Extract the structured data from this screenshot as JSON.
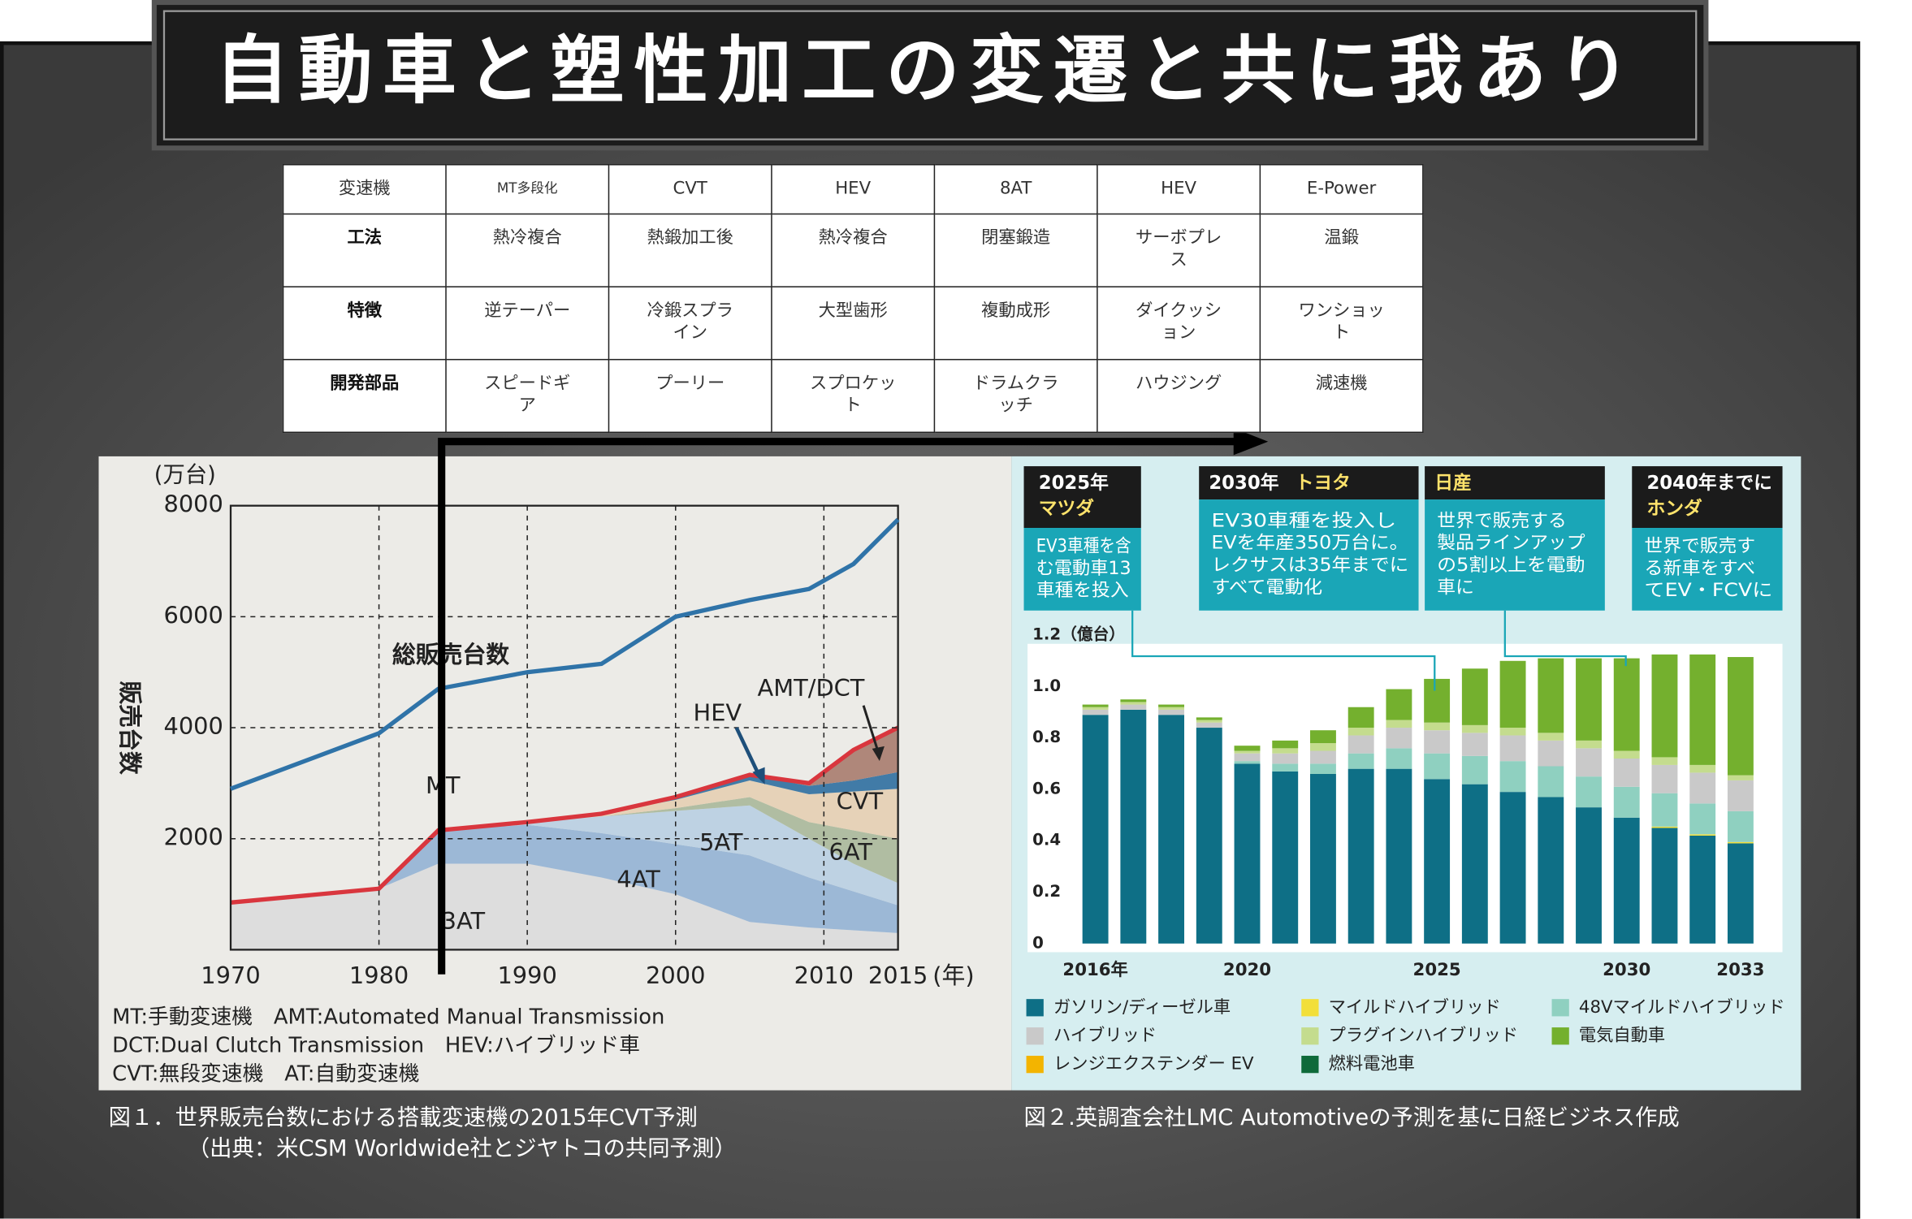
{
  "title": "自動車と塑性加工の変遷と共に我あり",
  "table": {
    "header": [
      "変速機",
      "MT多段化",
      "CVT",
      "HEV",
      "8AT",
      "HEV",
      "E-Power"
    ],
    "rows": [
      [
        "工法",
        "熱冷複合",
        "熱鍛加工後",
        "熱冷複合",
        "閉塞鍛造",
        "サーボプレス",
        "温鍛"
      ],
      [
        "特徴",
        "逆テーパー",
        "冷鍛スプライン",
        "大型歯形",
        "複動成形",
        "ダイクッション",
        "ワンショット"
      ],
      [
        "開発部品",
        "スピードギア",
        "プーリー",
        "スプロケット",
        "ドラムクラッチ",
        "ハウジング",
        "減速機"
      ]
    ]
  },
  "chart_data": [
    {
      "type": "stacked_area",
      "unit_label": "(万台)",
      "y_label": "販売台数",
      "x_unit": "(年)",
      "x": [
        1970,
        1980,
        1984,
        1990,
        1995,
        2000,
        2005,
        2009,
        2012,
        2015
      ],
      "xlim": [
        1970,
        2015
      ],
      "xticks": [
        1970,
        1980,
        1990,
        2000,
        2010,
        2015
      ],
      "ylim": [
        0,
        8000
      ],
      "yticks": [
        2000,
        4000,
        6000,
        8000
      ],
      "grid": true,
      "line_series": [
        {
          "name": "総販売台数",
          "color": "#2f73a8",
          "values": [
            2900,
            3900,
            4700,
            5000,
            5150,
            6000,
            6300,
            6500,
            6950,
            7750
          ]
        }
      ],
      "series": [
        {
          "name": "3AT",
          "color": "#dcdcdc",
          "values": [
            850,
            1100,
            1550,
            1550,
            1300,
            1000,
            500,
            400,
            350,
            300
          ]
        },
        {
          "name": "4AT",
          "color": "#93b2d4",
          "values": [
            0,
            0,
            600,
            700,
            800,
            900,
            1200,
            900,
            700,
            500
          ]
        },
        {
          "name": "5AT",
          "color": "#b9cfe2",
          "values": [
            0,
            0,
            0,
            50,
            300,
            600,
            900,
            700,
            500,
            400
          ]
        },
        {
          "name": "6AT",
          "color": "#aab89a",
          "values": [
            0,
            0,
            0,
            0,
            0,
            50,
            150,
            300,
            600,
            800
          ]
        },
        {
          "name": "CVT",
          "color": "#e6cfb2",
          "values": [
            0,
            0,
            0,
            0,
            50,
            150,
            300,
            500,
            700,
            900
          ]
        },
        {
          "name": "HEV",
          "color": "#2f6fa0",
          "values": [
            0,
            0,
            0,
            0,
            0,
            50,
            100,
            150,
            200,
            300
          ]
        },
        {
          "name": "AMT/DCT",
          "color": "#a87c6e",
          "values": [
            0,
            0,
            0,
            0,
            0,
            0,
            0,
            50,
            550,
            800
          ]
        }
      ],
      "annotations": [
        "MT"
      ],
      "notes": [
        "MT:手動変速機　AMT:Automated Manual Transmission",
        "DCT:Dual Clutch Transmission　HEV:ハイブリッド車",
        "CVT:無段変速機　AT:自動変速機"
      ],
      "caption": [
        "図１．世界販売台数における搭載変速機の2015年CVT予測",
        "（出典：米CSM Worldwide社とジヤトコの共同予測）"
      ]
    },
    {
      "type": "stacked_bar",
      "categories": [
        "2016年",
        null,
        null,
        null,
        "2020",
        null,
        null,
        null,
        null,
        "2025",
        null,
        null,
        null,
        null,
        "2030",
        null,
        null,
        "2033"
      ],
      "ylim": [
        0,
        1.2
      ],
      "yticks": [
        0,
        0.2,
        0.4,
        0.6,
        0.8,
        {
          "value": 1,
          "label": "1.0"
        },
        {
          "value": 1.2,
          "label": "1.2（億台）"
        }
      ],
      "series": [
        {
          "name": "ガソリン/ディーゼル車",
          "color": "#0e6f86",
          "values": [
            0.89,
            0.91,
            0.89,
            0.84,
            0.7,
            0.67,
            0.66,
            0.68,
            0.68,
            0.64,
            0.62,
            0.59,
            0.57,
            0.53,
            0.49,
            0.45,
            0.42,
            0.39
          ]
        },
        {
          "name": "レンジエクステンダー EV",
          "color": "#f3b400",
          "values": [
            0,
            0,
            0,
            0,
            0,
            0,
            0,
            0,
            0,
            0,
            0,
            0,
            0,
            0,
            0,
            0,
            0,
            0
          ]
        },
        {
          "name": "マイルドハイブリッド",
          "color": "#f2df3a",
          "values": [
            0,
            0,
            0,
            0,
            0,
            0,
            0,
            0,
            0,
            0,
            0,
            0,
            0,
            0,
            0,
            0.005,
            0.005,
            0.005
          ]
        },
        {
          "name": "48Vマイルドハイブリッド",
          "color": "#8fd0c0",
          "values": [
            0,
            0,
            0,
            0,
            0.01,
            0.03,
            0.04,
            0.06,
            0.08,
            0.1,
            0.11,
            0.12,
            0.12,
            0.12,
            0.12,
            0.13,
            0.12,
            0.12
          ]
        },
        {
          "name": "ハイブリッド",
          "color": "#c9c9c9",
          "values": [
            0.02,
            0.02,
            0.02,
            0.02,
            0.03,
            0.04,
            0.05,
            0.07,
            0.08,
            0.09,
            0.09,
            0.1,
            0.1,
            0.11,
            0.11,
            0.11,
            0.12,
            0.12
          ]
        },
        {
          "name": "プラグインハイブリッド",
          "color": "#c4dc8e",
          "values": [
            0.01,
            0.01,
            0.01,
            0.01,
            0.01,
            0.02,
            0.03,
            0.03,
            0.03,
            0.03,
            0.03,
            0.03,
            0.03,
            0.03,
            0.03,
            0.03,
            0.03,
            0.02
          ]
        },
        {
          "name": "燃料電池車",
          "color": "#0e6a3a",
          "values": [
            0,
            0,
            0,
            0,
            0,
            0,
            0,
            0,
            0,
            0,
            0,
            0,
            0,
            0,
            0,
            0,
            0,
            0
          ]
        },
        {
          "name": "電気自動車",
          "color": "#74b02e",
          "values": [
            0.01,
            0.01,
            0.01,
            0.01,
            0.02,
            0.03,
            0.05,
            0.08,
            0.12,
            0.17,
            0.22,
            0.26,
            0.29,
            0.32,
            0.36,
            0.4,
            0.43,
            0.46
          ]
        }
      ],
      "callouts": [
        {
          "year": "2025年",
          "company": "マツダ",
          "lines": [
            "EV3車種を含",
            "む電動車13",
            "車種を投入"
          ]
        },
        {
          "year": "2030年",
          "company": "トヨタ",
          "lines": [
            "EV30車種を投入し",
            "EVを年産350万台に。",
            "レクサスは35年までに",
            "すべて電動化"
          ]
        },
        {
          "company": "日産",
          "lines": [
            "世界で販売する",
            "製品ラインアップ",
            "の5割以上を電動",
            "車に"
          ]
        },
        {
          "year": "2040年までに",
          "company": "ホンダ",
          "lines": [
            "世界で販売す",
            "る新車をすべ",
            "てEV・FCVに"
          ]
        }
      ],
      "caption": [
        "図２.英調査会社LMC Automotiveの予測を基に日経ビジネス作成"
      ]
    }
  ]
}
